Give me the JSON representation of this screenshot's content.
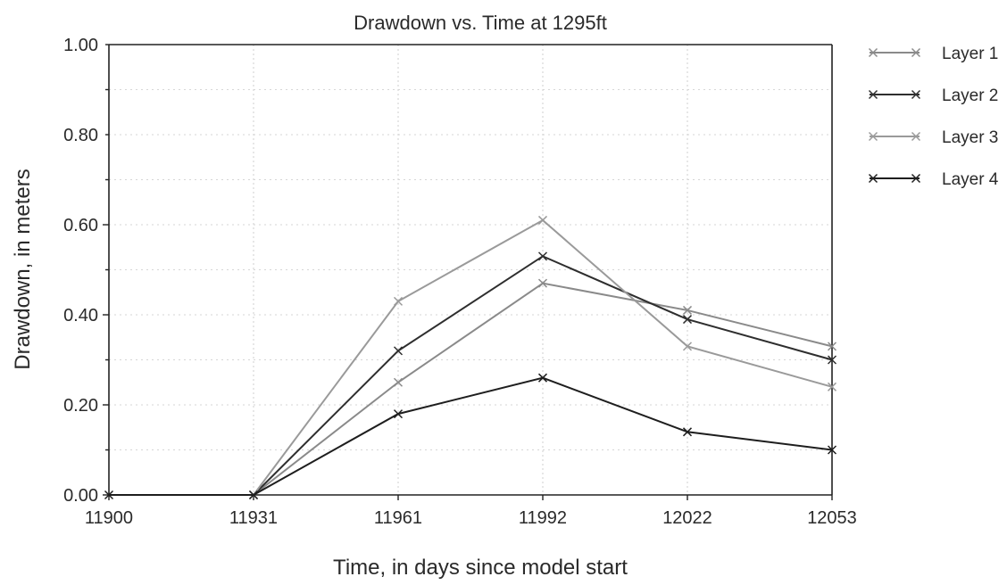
{
  "chart_data": {
    "type": "line",
    "title": "Drawdown vs. Time at 1295ft",
    "xlabel": "Time, in days since model start",
    "ylabel": "Drawdown, in meters",
    "x": [
      11900,
      11931,
      11961,
      11992,
      12022,
      12053
    ],
    "x_tick_labels": [
      "11900",
      "11931",
      "11961",
      "11992",
      "12022",
      "12053"
    ],
    "y_tick_labels": [
      "0.00",
      "0.20",
      "0.40",
      "0.60",
      "0.80",
      "1.00"
    ],
    "xlim": [
      11900,
      12053
    ],
    "ylim": [
      0,
      1.0
    ],
    "grid": true,
    "legend_position": "right",
    "series": [
      {
        "name": "Layer 1",
        "color": "#8a8a8a",
        "x": [
          11931,
          11961,
          11992,
          12022,
          12053
        ],
        "values": [
          0.0,
          0.25,
          0.47,
          0.41,
          0.33
        ]
      },
      {
        "name": "Layer 2",
        "color": "#2e2e2e",
        "x": [
          11931,
          11961,
          11992,
          12022,
          12053
        ],
        "values": [
          0.0,
          0.32,
          0.53,
          0.39,
          0.3
        ]
      },
      {
        "name": "Layer 3",
        "color": "#9a9a9a",
        "x": [
          11931,
          11961,
          11992,
          12022,
          12053
        ],
        "values": [
          0.0,
          0.43,
          0.61,
          0.33,
          0.24
        ]
      },
      {
        "name": "Layer 4",
        "color": "#1e1e1e",
        "x": [
          11900,
          11931,
          11961,
          11992,
          12022,
          12053
        ],
        "values": [
          0.0,
          0.0,
          0.18,
          0.26,
          0.14,
          0.1
        ]
      }
    ]
  }
}
